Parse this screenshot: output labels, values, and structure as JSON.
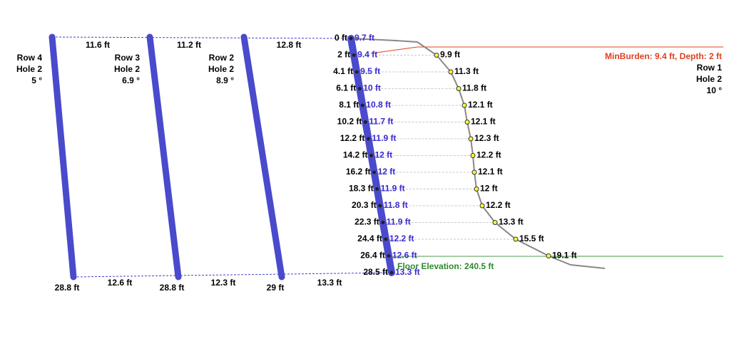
{
  "holes": [
    {
      "lines": [
        "Row 4",
        "Hole 2",
        "5 °"
      ],
      "depth": "28.8 ft",
      "top_spacing": "11.6 ft",
      "bottom_spacing": "12.6 ft"
    },
    {
      "lines": [
        "Row 3",
        "Hole 2",
        "6.9 °"
      ],
      "depth": "28.8 ft",
      "top_spacing": "11.2 ft",
      "bottom_spacing": "12.3 ft"
    },
    {
      "lines": [
        "Row 2",
        "Hole 2",
        "8.9 °"
      ],
      "depth": "29 ft",
      "top_spacing": "12.8 ft",
      "bottom_spacing": "13.3 ft"
    }
  ],
  "front_hole": {
    "lines": [
      "Row 1",
      "Hole 2",
      "10 °"
    ],
    "depths": [
      "0 ft",
      "2 ft",
      "4.1 ft",
      "6.1 ft",
      "8.1 ft",
      "10.2 ft",
      "12.2 ft",
      "14.2 ft",
      "16.2 ft",
      "18.3 ft",
      "20.3 ft",
      "22.3 ft",
      "24.4 ft",
      "26.4 ft",
      "28.5 ft"
    ],
    "burdens": [
      "9.7 ft",
      "9.4 ft",
      "9.5 ft",
      "10 ft",
      "10.8 ft",
      "11.7 ft",
      "11.9 ft",
      "12 ft",
      "12 ft",
      "11.9 ft",
      "11.8 ft",
      "11.9 ft",
      "12.2 ft",
      "12.6 ft",
      "13.3 ft"
    ],
    "face_distances": [
      "9.9 ft",
      "11.3 ft",
      "11.8 ft",
      "12.1 ft",
      "12.1 ft",
      "12.3 ft",
      "12.2 ft",
      "12.1 ft",
      "12 ft",
      "12.2 ft",
      "13.3 ft",
      "15.5 ft",
      "19.1 ft"
    ]
  },
  "min_burden": "MinBurden: 9.4 ft, Depth: 2 ft",
  "floor": "Floor Elevation: 240.5 ft"
}
